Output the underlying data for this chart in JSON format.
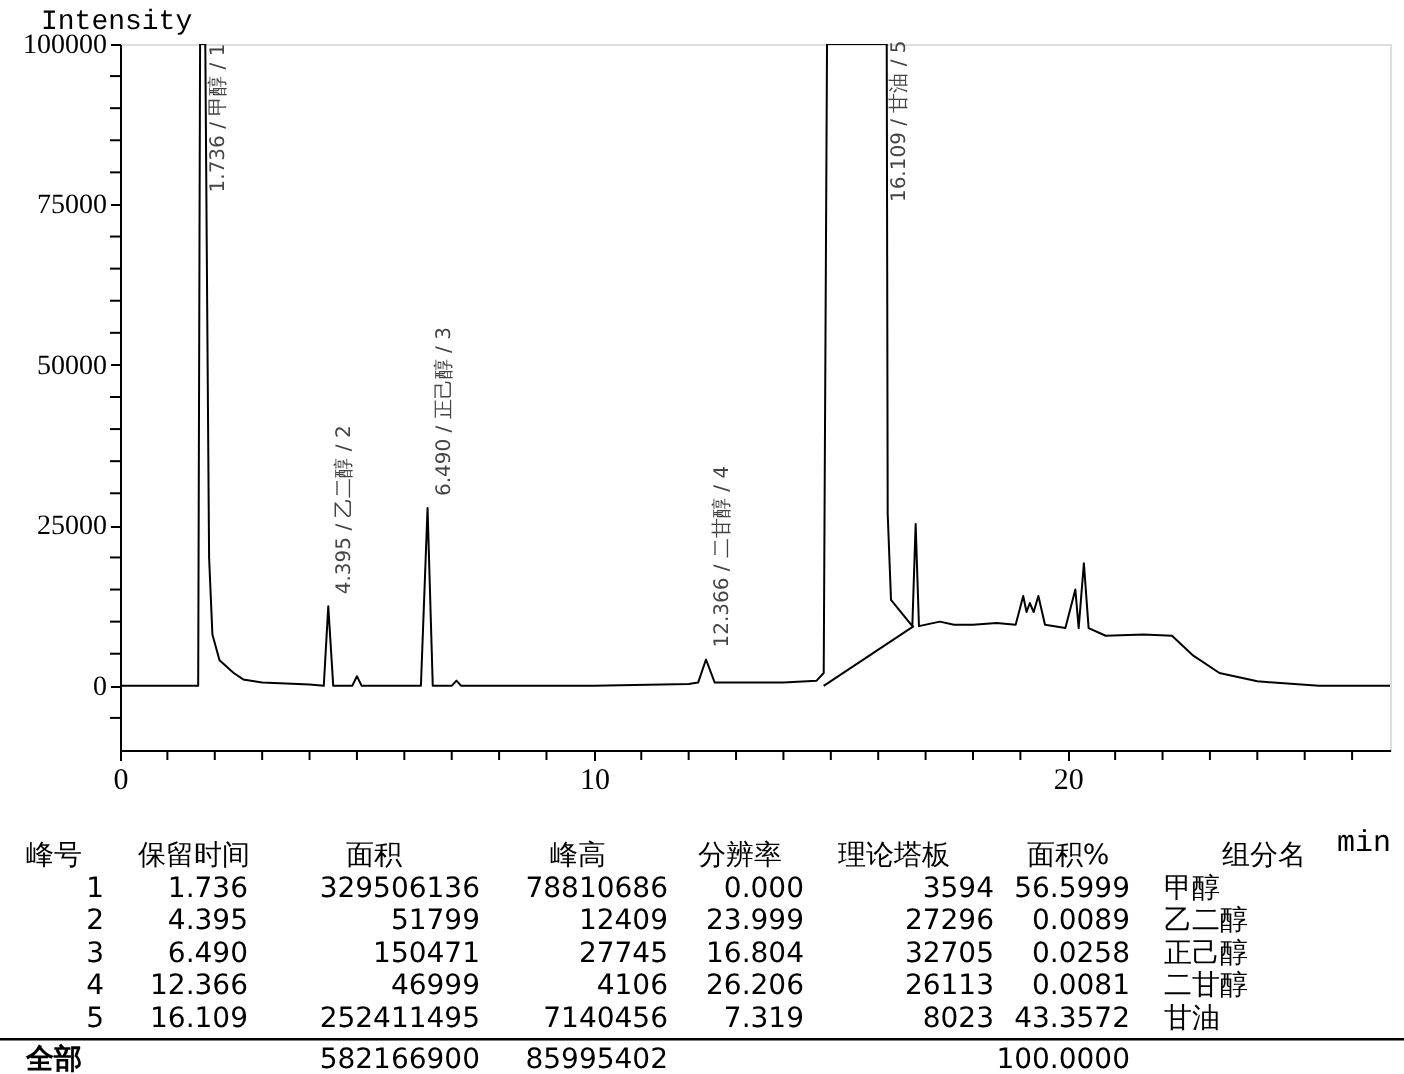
{
  "chart_data": {
    "type": "line",
    "xlabel": "min",
    "ylabel": "Intensity",
    "xlim": [
      0,
      26.8
    ],
    "ylim": [
      -10000,
      100000
    ],
    "xticks": [
      0,
      {
        "value": 1,
        "label": null
      },
      {
        "value": 2,
        "label": null
      },
      {
        "value": 3,
        "label": null
      },
      {
        "value": 4,
        "label": null
      },
      {
        "value": 5,
        "label": null
      },
      {
        "value": 6,
        "label": null
      },
      {
        "value": 7,
        "label": null
      },
      {
        "value": 8,
        "label": null
      },
      {
        "value": 9,
        "label": null
      },
      10,
      {
        "value": 11,
        "label": null
      },
      {
        "value": 12,
        "label": null
      },
      {
        "value": 13,
        "label": null
      },
      {
        "value": 14,
        "label": null
      },
      {
        "value": 15,
        "label": null
      },
      {
        "value": 16,
        "label": null
      },
      {
        "value": 17,
        "label": null
      },
      {
        "value": 18,
        "label": null
      },
      {
        "value": 19,
        "label": null
      },
      20,
      {
        "value": 21,
        "label": null
      },
      {
        "value": 22,
        "label": null
      },
      {
        "value": 23,
        "label": null
      },
      {
        "value": 24,
        "label": null
      },
      {
        "value": 25,
        "label": null
      },
      {
        "value": 26,
        "label": null
      }
    ],
    "yticks": [
      {
        "value": -5000,
        "label": null
      },
      0,
      {
        "value": 5000,
        "label": null
      },
      {
        "value": 10000,
        "label": null
      },
      {
        "value": 15000,
        "label": null
      },
      {
        "value": 20000,
        "label": null
      },
      25000,
      {
        "value": 30000,
        "label": null
      },
      {
        "value": 35000,
        "label": null
      },
      {
        "value": 40000,
        "label": null
      },
      {
        "value": 45000,
        "label": null
      },
      50000,
      {
        "value": 55000,
        "label": null
      },
      {
        "value": 60000,
        "label": null
      },
      {
        "value": 65000,
        "label": null
      },
      {
        "value": 70000,
        "label": null
      },
      75000,
      {
        "value": 80000,
        "label": null
      },
      {
        "value": 85000,
        "label": null
      },
      {
        "value": 90000,
        "label": null
      },
      {
        "value": 95000,
        "label": null
      },
      100000
    ],
    "grid": false,
    "legend": false,
    "marker": "none",
    "line_style": "solid",
    "series": [
      {
        "color": "#000000",
        "x": [
          0,
          1.65,
          1.69,
          1.8,
          1.84,
          1.88,
          1.95,
          2.1,
          2.4,
          2.6,
          3.0,
          4.0,
          4.3,
          4.395,
          4.5,
          4.9,
          5.0,
          5.1,
          6.35,
          6.49,
          6.6,
          7.0,
          7.1,
          7.2,
          10,
          12.0,
          12.2,
          12.366,
          12.55,
          14.0,
          14.7,
          14.85,
          14.92,
          16.18,
          16.2,
          16.27,
          16.72,
          16.79,
          16.86,
          17.3,
          17.6,
          18.0,
          18.5,
          18.9,
          19.06,
          19.13,
          19.2,
          19.28,
          19.38,
          19.52,
          19.95,
          20.16,
          20.23,
          20.34,
          20.44,
          20.8,
          21.6,
          22.2,
          22.65,
          23.2,
          24.0,
          25.3,
          26.8
        ],
        "values": [
          0,
          0,
          100000,
          100000,
          59000,
          20000,
          8000,
          4000,
          2000,
          1000,
          500,
          200,
          0,
          12400,
          0,
          0,
          1500,
          0,
          0,
          27700,
          0,
          0,
          800,
          0,
          0,
          300,
          500,
          4100,
          500,
          500,
          800,
          2000,
          100000,
          100000,
          26800,
          13400,
          9300,
          25200,
          9300,
          10000,
          9500,
          9500,
          9800,
          9500,
          14000,
          11500,
          12900,
          11500,
          14000,
          9500,
          9000,
          15000,
          9000,
          19100,
          9000,
          7800,
          8000,
          7800,
          4700,
          2000,
          700,
          0,
          0
        ]
      },
      {
        "color": "#000000",
        "x": [
          14.85,
          16.75
        ],
        "values": [
          0,
          9300
        ]
      }
    ],
    "annotations": [
      {
        "text": "1.736 / 甲醇 / 1",
        "x": 1.736,
        "y": 75000
      },
      {
        "text": "4.395 / 乙二醇 / 2",
        "x": 4.395,
        "y": 12400
      },
      {
        "text": "6.490 / 正己醇 / 3",
        "x": 6.49,
        "y": 27700
      },
      {
        "text": "12.366 / 二甘醇 / 4",
        "x": 12.366,
        "y": 4100
      },
      {
        "text": "16.109 / 甘油 / 5",
        "x": 16.109,
        "y": 73500
      },
      "峰号",
      "保留时间",
      "面积",
      "峰高",
      "分辨率",
      "理论塔板",
      "面积%",
      "组分名",
      "1",
      "1.736",
      "329506136",
      "78810686",
      "0.000",
      "3594",
      "56.5999",
      "甲醇",
      "2",
      "4.395",
      "51799",
      "12409",
      "23.999",
      "27296",
      "0.0089",
      "乙二醇",
      "3",
      "6.490",
      "150471",
      "27745",
      "16.804",
      "32705",
      "0.0258",
      "正己醇",
      "4",
      "12.366",
      "46999",
      "4106",
      "26.206",
      "26113",
      "0.0081",
      "二甘醇",
      "5",
      "16.109",
      "252411495",
      "7140456",
      "7.319",
      "8023",
      "43.3572",
      "甘油",
      "全部",
      null,
      "582166900",
      "85995402",
      null,
      null,
      "100.0000",
      null
    ]
  }
}
